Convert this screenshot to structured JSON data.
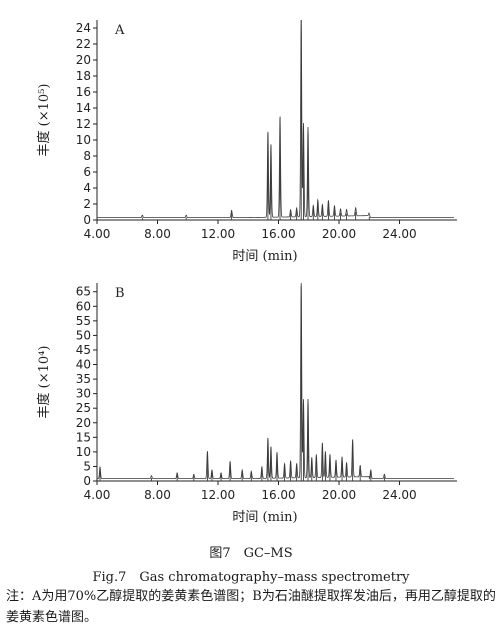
{
  "figure": {
    "label": "图7　GC–MS",
    "caption_en": "Fig.7　Gas chromatography–mass spectrometry",
    "note": "注：A为用70%乙醇提取的姜黄素色谱图；B为石油醚提取挥发油后，再用乙醇提取的姜黄素色谱图。"
  },
  "chart_data": [
    {
      "type": "line",
      "panel_label": "A",
      "xlabel": "时间 (min)",
      "ylabel": "丰度 (×10⁵)",
      "xlim": [
        4.0,
        27.8
      ],
      "ylim": [
        0,
        25
      ],
      "x_ticks": [
        "4.00",
        "8.00",
        "12.00",
        "16.00",
        "20.00",
        "24.00"
      ],
      "x_tick_values": [
        4,
        8,
        12,
        16,
        20,
        24
      ],
      "y_ticks": [
        0,
        2,
        4,
        6,
        8,
        10,
        12,
        14,
        16,
        18,
        20,
        22,
        24
      ],
      "series": [
        {
          "peaks": [
            {
              "x": 7.0,
              "y": 0.3
            },
            {
              "x": 9.9,
              "y": 0.3
            },
            {
              "x": 12.9,
              "y": 0.9
            },
            {
              "x": 15.3,
              "y": 10.8
            },
            {
              "x": 15.5,
              "y": 9.2
            },
            {
              "x": 16.1,
              "y": 12.7
            },
            {
              "x": 16.8,
              "y": 0.9
            },
            {
              "x": 17.2,
              "y": 1.1
            },
            {
              "x": 17.5,
              "y": 25.0
            },
            {
              "x": 17.65,
              "y": 11.7
            },
            {
              "x": 17.95,
              "y": 11.2
            },
            {
              "x": 18.3,
              "y": 1.4
            },
            {
              "x": 18.6,
              "y": 2.1
            },
            {
              "x": 18.9,
              "y": 1.5
            },
            {
              "x": 19.3,
              "y": 2.0
            },
            {
              "x": 19.7,
              "y": 1.3
            },
            {
              "x": 20.1,
              "y": 0.9
            },
            {
              "x": 20.5,
              "y": 0.8
            },
            {
              "x": 21.1,
              "y": 1.0
            },
            {
              "x": 22.0,
              "y": 0.4
            }
          ]
        }
      ]
    },
    {
      "type": "line",
      "panel_label": "B",
      "xlabel": "时间 (min)",
      "ylabel": "丰度 (×10⁴)",
      "xlim": [
        4.0,
        27.8
      ],
      "ylim": [
        0,
        68
      ],
      "x_ticks": [
        "4.00",
        "8.00",
        "12.00",
        "16.00",
        "20.00",
        "24.00"
      ],
      "x_tick_values": [
        4,
        8,
        12,
        16,
        20,
        24
      ],
      "y_ticks": [
        0,
        5,
        10,
        15,
        20,
        25,
        30,
        35,
        40,
        45,
        50,
        55,
        60,
        65
      ],
      "series": [
        {
          "peaks": [
            {
              "x": 4.2,
              "y": 4.0
            },
            {
              "x": 7.6,
              "y": 1.0
            },
            {
              "x": 9.3,
              "y": 2.0
            },
            {
              "x": 10.4,
              "y": 1.5
            },
            {
              "x": 11.3,
              "y": 9.5
            },
            {
              "x": 11.6,
              "y": 3.0
            },
            {
              "x": 12.2,
              "y": 2.0
            },
            {
              "x": 12.8,
              "y": 6.0
            },
            {
              "x": 13.6,
              "y": 3.0
            },
            {
              "x": 14.2,
              "y": 2.5
            },
            {
              "x": 14.9,
              "y": 4.0
            },
            {
              "x": 15.3,
              "y": 14.0
            },
            {
              "x": 15.5,
              "y": 11.0
            },
            {
              "x": 15.9,
              "y": 9.0
            },
            {
              "x": 16.4,
              "y": 5.0
            },
            {
              "x": 16.8,
              "y": 6.0
            },
            {
              "x": 17.2,
              "y": 5.0
            },
            {
              "x": 17.5,
              "y": 67.0
            },
            {
              "x": 17.65,
              "y": 27.0
            },
            {
              "x": 17.95,
              "y": 27.0
            },
            {
              "x": 18.2,
              "y": 7.0
            },
            {
              "x": 18.5,
              "y": 8.0
            },
            {
              "x": 18.9,
              "y": 12.0
            },
            {
              "x": 19.1,
              "y": 9.0
            },
            {
              "x": 19.4,
              "y": 8.0
            },
            {
              "x": 19.8,
              "y": 6.0
            },
            {
              "x": 20.2,
              "y": 7.0
            },
            {
              "x": 20.5,
              "y": 5.0
            },
            {
              "x": 20.9,
              "y": 13.0
            },
            {
              "x": 21.4,
              "y": 4.0
            },
            {
              "x": 22.1,
              "y": 3.0
            },
            {
              "x": 23.0,
              "y": 1.5
            }
          ]
        }
      ]
    }
  ]
}
